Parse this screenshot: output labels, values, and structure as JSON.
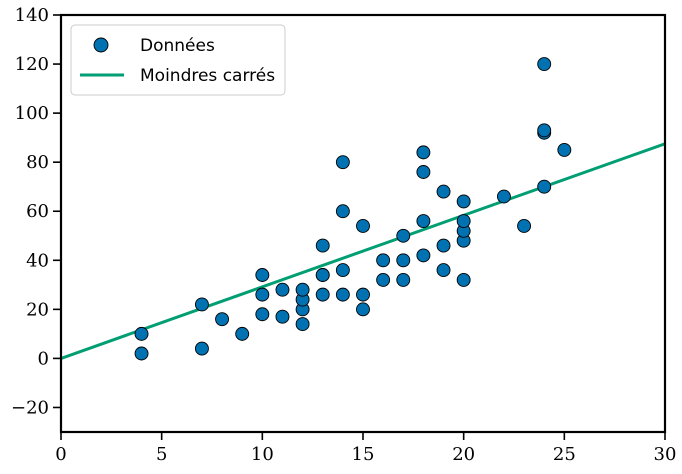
{
  "chart_data": {
    "type": "scatter",
    "title": "",
    "xlabel": "",
    "ylabel": "",
    "xlim": [
      0,
      30
    ],
    "ylim": [
      -30,
      140
    ],
    "x_ticks": [
      0,
      5,
      10,
      15,
      20,
      25,
      30
    ],
    "y_ticks": [
      -20,
      0,
      20,
      40,
      60,
      80,
      100,
      120,
      140
    ],
    "x_tick_labels": [
      "0",
      "5",
      "10",
      "15",
      "20",
      "25",
      "30"
    ],
    "y_tick_labels": [
      "−20",
      "0",
      "20",
      "40",
      "60",
      "80",
      "100",
      "120",
      "140"
    ],
    "grid": false,
    "legend_position": "top-left",
    "series": [
      {
        "name": "Données",
        "kind": "scatter",
        "color": "#0072B2",
        "points": [
          [
            4,
            2
          ],
          [
            4,
            10
          ],
          [
            7,
            4
          ],
          [
            7,
            22
          ],
          [
            8,
            16
          ],
          [
            9,
            10
          ],
          [
            10,
            18
          ],
          [
            10,
            26
          ],
          [
            10,
            34
          ],
          [
            11,
            17
          ],
          [
            11,
            28
          ],
          [
            12,
            14
          ],
          [
            12,
            20
          ],
          [
            12,
            24
          ],
          [
            12,
            28
          ],
          [
            13,
            26
          ],
          [
            13,
            34
          ],
          [
            13,
            34
          ],
          [
            13,
            46
          ],
          [
            14,
            26
          ],
          [
            14,
            36
          ],
          [
            14,
            60
          ],
          [
            14,
            80
          ],
          [
            15,
            20
          ],
          [
            15,
            26
          ],
          [
            15,
            54
          ],
          [
            16,
            32
          ],
          [
            16,
            40
          ],
          [
            17,
            32
          ],
          [
            17,
            40
          ],
          [
            17,
            50
          ],
          [
            18,
            42
          ],
          [
            18,
            56
          ],
          [
            18,
            76
          ],
          [
            18,
            84
          ],
          [
            19,
            36
          ],
          [
            19,
            46
          ],
          [
            19,
            68
          ],
          [
            20,
            32
          ],
          [
            20,
            48
          ],
          [
            20,
            52
          ],
          [
            20,
            56
          ],
          [
            20,
            64
          ],
          [
            22,
            66
          ],
          [
            23,
            54
          ],
          [
            24,
            70
          ],
          [
            24,
            92
          ],
          [
            24,
            93
          ],
          [
            24,
            120
          ],
          [
            25,
            85
          ]
        ]
      },
      {
        "name": "Moindres carrés",
        "kind": "line",
        "color": "#009E73",
        "points": [
          [
            0,
            0
          ],
          [
            30,
            87.5
          ]
        ]
      }
    ]
  }
}
